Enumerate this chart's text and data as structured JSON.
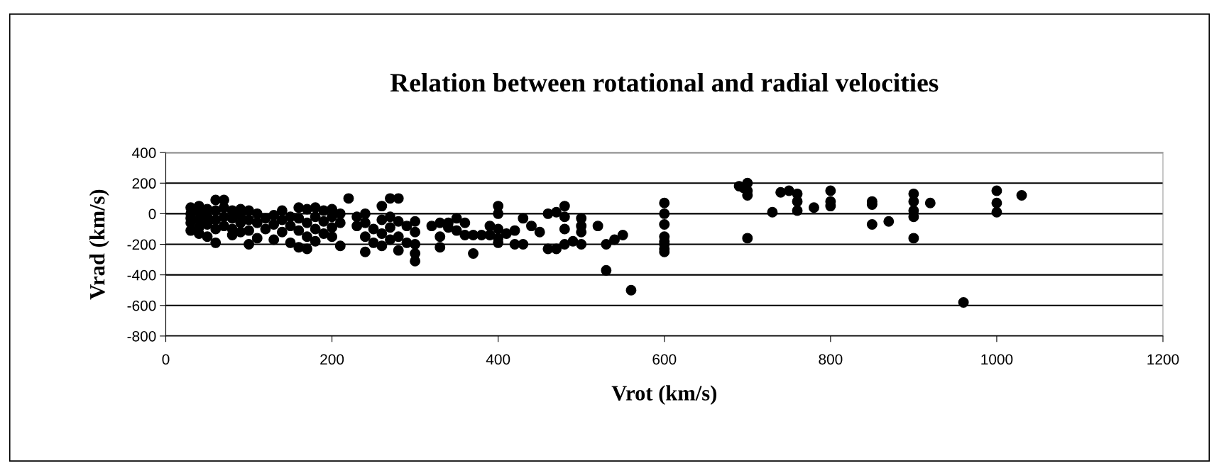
{
  "chart_data": {
    "type": "scatter",
    "title": "Relation between rotational and radial velocities",
    "xlabel": "Vrot (km/s)",
    "ylabel": "Vrad (km/s)",
    "xlim": [
      0,
      1200
    ],
    "xticks": [
      0,
      200,
      400,
      600,
      800,
      1000,
      1200
    ],
    "ylim": [
      -800,
      400
    ],
    "yticks": [
      -800,
      -600,
      -400,
      -200,
      0,
      200,
      400
    ],
    "grid": "y",
    "marker": "circle",
    "legend": false,
    "series": [
      {
        "color": "#000000",
        "x": [
          30,
          30,
          30,
          30,
          30,
          40,
          40,
          40,
          40,
          40,
          50,
          50,
          50,
          50,
          60,
          60,
          60,
          60,
          60,
          70,
          70,
          70,
          70,
          80,
          80,
          80,
          80,
          90,
          90,
          90,
          90,
          100,
          100,
          100,
          100,
          110,
          110,
          110,
          120,
          120,
          130,
          130,
          130,
          140,
          140,
          140,
          150,
          150,
          150,
          160,
          160,
          160,
          160,
          170,
          170,
          170,
          170,
          180,
          180,
          180,
          180,
          190,
          190,
          190,
          200,
          200,
          200,
          200,
          210,
          210,
          210,
          220,
          230,
          230,
          240,
          240,
          240,
          240,
          250,
          250,
          260,
          260,
          260,
          260,
          270,
          270,
          270,
          270,
          280,
          280,
          280,
          280,
          290,
          290,
          300,
          300,
          300,
          300,
          300,
          320,
          330,
          330,
          330,
          340,
          340,
          350,
          350,
          360,
          360,
          370,
          370,
          380,
          390,
          390,
          400,
          400,
          400,
          400,
          400,
          410,
          420,
          420,
          430,
          430,
          440,
          450,
          460,
          460,
          470,
          470,
          480,
          480,
          480,
          480,
          490,
          500,
          500,
          500,
          500,
          520,
          530,
          530,
          540,
          550,
          560,
          600,
          600,
          600,
          600,
          600,
          600,
          600,
          600,
          690,
          695,
          700,
          700,
          700,
          700,
          730,
          740,
          750,
          760,
          760,
          760,
          780,
          800,
          800,
          800,
          850,
          850,
          850,
          870,
          900,
          900,
          900,
          900,
          900,
          920,
          960,
          1000,
          1000,
          1000,
          1030
        ],
        "values": [
          40,
          0,
          -30,
          -60,
          -110,
          50,
          10,
          -40,
          -90,
          -130,
          30,
          -20,
          -70,
          -150,
          90,
          20,
          -40,
          -100,
          -190,
          90,
          40,
          -20,
          -80,
          20,
          -30,
          -100,
          -140,
          30,
          -10,
          -60,
          -120,
          20,
          -40,
          -110,
          -200,
          0,
          -60,
          -160,
          -30,
          -100,
          -10,
          -70,
          -170,
          20,
          -40,
          -120,
          -20,
          -80,
          -190,
          40,
          -30,
          -110,
          -220,
          30,
          -60,
          -150,
          -230,
          40,
          -20,
          -100,
          -180,
          20,
          -50,
          -130,
          30,
          -20,
          -90,
          -150,
          0,
          -60,
          -210,
          100,
          -20,
          -80,
          0,
          -60,
          -150,
          -250,
          -100,
          -190,
          50,
          -40,
          -130,
          -210,
          100,
          -20,
          -90,
          -170,
          100,
          -50,
          -150,
          -240,
          -80,
          -190,
          -50,
          -120,
          -200,
          -260,
          -310,
          -80,
          -60,
          -150,
          -220,
          -90,
          -60,
          -30,
          -110,
          -60,
          -140,
          -140,
          -260,
          -140,
          -80,
          -140,
          50,
          0,
          -100,
          -160,
          -190,
          -130,
          -110,
          -200,
          -30,
          -200,
          -80,
          -120,
          0,
          -230,
          10,
          -230,
          50,
          -20,
          -100,
          -200,
          -180,
          -30,
          -80,
          -120,
          -200,
          -80,
          -200,
          -370,
          -170,
          -140,
          -500,
          70,
          0,
          -70,
          -150,
          -180,
          -200,
          -230,
          -250,
          180,
          170,
          200,
          150,
          120,
          -160,
          10,
          140,
          150,
          130,
          80,
          20,
          40,
          150,
          80,
          50,
          80,
          60,
          -70,
          -50,
          130,
          80,
          20,
          -20,
          -160,
          70,
          -580,
          150,
          70,
          10,
          120
        ]
      }
    ]
  }
}
